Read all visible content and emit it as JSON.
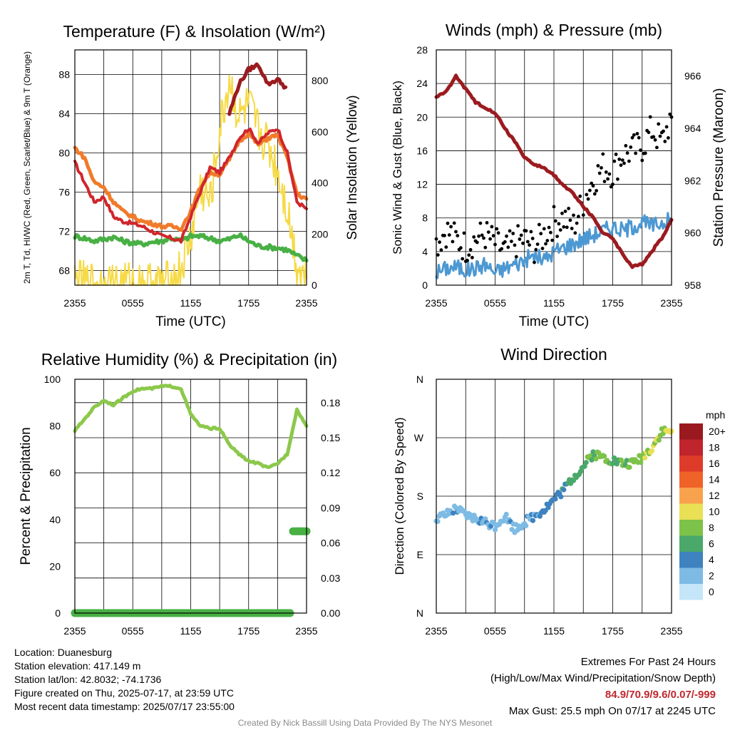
{
  "chart_data": [
    {
      "type": "line",
      "title": "Temperature (F) & Insolation (W/m²)",
      "xlabel": "Time (UTC)",
      "ylabel": "2m T, Td, HI/WC (Red, Green, Scarlet/Blue) & 9m T (Orange)",
      "y2label": "Solar Insolation (Yellow)",
      "x_ticks": [
        "2355",
        "0555",
        "1155",
        "1755",
        "2355"
      ],
      "ylim": [
        66.5,
        90.5
      ],
      "y_ticks": [
        68,
        72,
        76,
        80,
        84,
        88
      ],
      "y2lim": [
        0,
        920
      ],
      "y2_ticks": [
        0,
        200,
        400,
        600,
        800
      ],
      "x": [
        0,
        1,
        2,
        3,
        4,
        5,
        6,
        7,
        8,
        9,
        10,
        11,
        12,
        13,
        14,
        15,
        16,
        17,
        18,
        19,
        20,
        21,
        22,
        23,
        24
      ],
      "series": [
        {
          "name": "2m T",
          "axis": "left",
          "color": "#d0262c",
          "values": [
            79.0,
            77.0,
            75.0,
            75.5,
            73.5,
            73.0,
            72.8,
            72.5,
            72.0,
            71.5,
            71.3,
            71.0,
            73.5,
            76.0,
            78.5,
            78.0,
            79.5,
            81.5,
            82.5,
            81.0,
            82.0,
            82.5,
            80.0,
            75.0,
            74.3
          ]
        },
        {
          "name": "2m Td",
          "axis": "left",
          "color": "#48b044",
          "values": [
            71.5,
            71.3,
            71.0,
            71.2,
            71.4,
            71.0,
            70.8,
            70.7,
            70.9,
            71.0,
            71.3,
            71.0,
            71.5,
            71.5,
            71.3,
            71.0,
            71.2,
            71.6,
            71.0,
            70.5,
            70.4,
            70.3,
            70.1,
            69.5,
            69.0
          ]
        },
        {
          "name": "HI/WC",
          "axis": "left",
          "color": "#9b1b1f",
          "values": [
            null,
            null,
            null,
            null,
            null,
            null,
            null,
            null,
            null,
            null,
            null,
            null,
            null,
            null,
            null,
            null,
            84.0,
            87.0,
            88.5,
            89.0,
            87.0,
            87.5,
            86.5,
            null,
            null
          ]
        },
        {
          "name": "9m T",
          "axis": "left",
          "color": "#f07b2b",
          "values": [
            80.5,
            79.5,
            77.0,
            76.5,
            75.0,
            74.0,
            73.5,
            73.0,
            72.8,
            72.5,
            72.5,
            72.3,
            74.0,
            76.5,
            78.0,
            77.8,
            79.3,
            81.2,
            82.0,
            80.8,
            81.5,
            81.8,
            79.5,
            75.8,
            75.3
          ]
        },
        {
          "name": "Solar Insolation",
          "axis": "right",
          "color": "#f6da46",
          "values": [
            15,
            5,
            5,
            5,
            5,
            5,
            5,
            5,
            5,
            5,
            10,
            60,
            180,
            380,
            320,
            600,
            800,
            650,
            700,
            600,
            550,
            450,
            300,
            80,
            25
          ]
        }
      ]
    },
    {
      "type": "line",
      "title": "Winds (mph) & Pressure (mb)",
      "xlabel": "Time (UTC)",
      "ylabel": "Sonic Wind & Gust (Blue, Black)",
      "y2label": "Station Pressure (Maroon)",
      "x_ticks": [
        "2355",
        "0555",
        "1155",
        "1755",
        "2355"
      ],
      "ylim": [
        0,
        28
      ],
      "y_ticks": [
        0,
        4,
        8,
        12,
        16,
        20,
        24,
        28
      ],
      "y2lim": [
        958,
        967
      ],
      "y2_ticks": [
        958,
        960,
        962,
        964,
        966
      ],
      "x": [
        0,
        1,
        2,
        3,
        4,
        5,
        6,
        7,
        8,
        9,
        10,
        11,
        12,
        13,
        14,
        15,
        16,
        17,
        18,
        19,
        20,
        21,
        22,
        23,
        24
      ],
      "series": [
        {
          "name": "Sonic Wind",
          "axis": "left",
          "color": "#4c98d2",
          "values": [
            1.5,
            2.0,
            2.2,
            1.8,
            2.0,
            2.5,
            1.5,
            2.0,
            2.5,
            3.0,
            3.5,
            3.0,
            4.0,
            4.5,
            5.0,
            5.5,
            6.0,
            6.5,
            7.0,
            6.5,
            7.0,
            7.5,
            7.0,
            7.5,
            7.8
          ]
        },
        {
          "name": "Gust",
          "axis": "left",
          "color": "#000000",
          "type": "scatter",
          "values": [
            5.0,
            6.5,
            5.5,
            4.5,
            5.5,
            6.0,
            5.0,
            4.0,
            5.0,
            5.5,
            4.5,
            6.0,
            7.5,
            8.0,
            7.0,
            10.0,
            12.5,
            14.0,
            13.5,
            15.5,
            16.0,
            16.5,
            18.5,
            17.0,
            20.0
          ]
        },
        {
          "name": "Station Pressure",
          "axis": "right",
          "color": "#9b1b1f",
          "values": [
            965.2,
            965.4,
            966.0,
            965.5,
            965.0,
            964.8,
            964.6,
            964.0,
            963.5,
            962.9,
            962.6,
            962.5,
            962.2,
            961.8,
            961.5,
            961.0,
            960.6,
            960.0,
            959.8,
            959.2,
            958.7,
            958.8,
            959.3,
            959.8,
            960.5
          ]
        }
      ]
    },
    {
      "type": "line",
      "title": "Relative Humidity (%) & Precipitation (in)",
      "ylabel": "Percent & Precipitation",
      "x_ticks": [
        "2355",
        "0555",
        "1155",
        "1755",
        "2355"
      ],
      "ylim": [
        0,
        100
      ],
      "y_ticks": [
        0,
        20,
        40,
        60,
        80,
        100
      ],
      "y2lim": [
        0,
        0.2
      ],
      "y2_ticks": [
        "0.00",
        "0.03",
        "0.06",
        "0.09",
        "0.12",
        "0.15",
        "0.18"
      ],
      "x": [
        0,
        1,
        2,
        3,
        4,
        5,
        6,
        7,
        8,
        9,
        10,
        11,
        12,
        13,
        14,
        15,
        16,
        17,
        18,
        19,
        20,
        21,
        22,
        23,
        24
      ],
      "series": [
        {
          "name": "Relative Humidity",
          "axis": "left",
          "color": "#8cc84b",
          "values": [
            78,
            83,
            88,
            91,
            89,
            92,
            95,
            96,
            96,
            97,
            97,
            96,
            85,
            80,
            79,
            79,
            72,
            68,
            65,
            64,
            62,
            64,
            68,
            87,
            80
          ]
        },
        {
          "name": "Precipitation",
          "axis": "right",
          "color": "#48b044",
          "values": [
            0.0,
            0.0,
            0.0,
            0.0,
            0.0,
            0.0,
            0.0,
            0.0,
            0.0,
            0.0,
            0.0,
            0.0,
            0.0,
            0.0,
            0.0,
            0.0,
            0.0,
            0.0,
            0.0,
            0.0,
            0.0,
            0.0,
            0.0,
            0.07,
            0.07
          ]
        }
      ]
    },
    {
      "type": "scatter",
      "title": "Wind Direction",
      "ylabel": "Direction (Colored By Speed)",
      "x_ticks": [
        "2355",
        "0555",
        "1155",
        "1755",
        "2355"
      ],
      "y_ticks": [
        "N",
        "E",
        "S",
        "W",
        "N"
      ],
      "ylim": [
        0,
        360
      ],
      "x": [
        0,
        1,
        2,
        3,
        4,
        5,
        6,
        7,
        8,
        9,
        10,
        11,
        12,
        13,
        14,
        15,
        16,
        17,
        18,
        19,
        20,
        21,
        22,
        23,
        24
      ],
      "series": [
        {
          "name": "Direction",
          "values": [
            145,
            150,
            160,
            150,
            145,
            140,
            135,
            150,
            130,
            140,
            150,
            160,
            175,
            190,
            210,
            225,
            245,
            240,
            235,
            230,
            230,
            240,
            255,
            280,
            280
          ]
        },
        {
          "name": "Speed",
          "values": [
            2,
            2,
            3,
            2,
            2,
            3,
            2,
            2,
            3,
            3,
            3,
            4,
            4,
            5,
            6,
            6,
            7,
            8,
            7,
            7,
            8,
            8,
            9,
            9,
            9
          ]
        }
      ],
      "colorbar": {
        "unit": "mph",
        "labels": [
          "20+",
          "18",
          "16",
          "14",
          "12",
          "10",
          "8",
          "6",
          "4",
          "2",
          "0"
        ],
        "colors": [
          "#99191e",
          "#c0242c",
          "#de3b2a",
          "#ef6228",
          "#f8a24d",
          "#e9e056",
          "#7dc249",
          "#4aa86a",
          "#3e82bf",
          "#7dbbe4",
          "#c4e6f8"
        ]
      }
    }
  ],
  "info": {
    "location": "Location: Duanesburg",
    "elevation": "Station elevation: 417.149 m",
    "latlon": "Station lat/lon: 42.8032; -74.1736",
    "created": "Figure created on Thu, 2025-07-17, at 23:59 UTC",
    "recent": "Most recent data timestamp: 2025/07/17 23:55:00"
  },
  "extremes": {
    "header": "Extremes For Past 24 Hours",
    "subheader": "(High/Low/Max Wind/Precipitation/Snow Depth)",
    "values": "84.9/70.9/9.6/0.07/-999",
    "gust": "Max Gust: 25.5 mph On 07/17 at 2245 UTC"
  },
  "credit": "Created By Nick Bassill Using Data Provided By The NYS Mesonet"
}
